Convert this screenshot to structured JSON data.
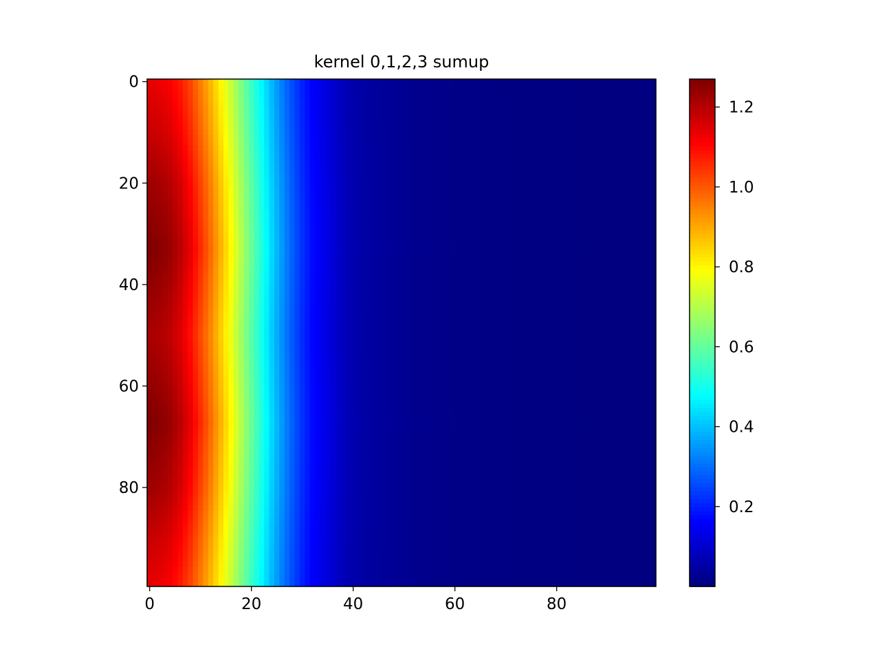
{
  "chart_data": {
    "type": "heatmap",
    "title": "kernel 0,1,2,3 sumup",
    "xlabel": "",
    "ylabel": "",
    "grid": false,
    "colormap": "jet",
    "shape": [
      100,
      100
    ],
    "xlim": [
      -0.5,
      99.5
    ],
    "ylim": [
      99.5,
      -0.5
    ],
    "x_ticks": [
      0,
      20,
      40,
      60,
      80
    ],
    "y_ticks": [
      0,
      20,
      40,
      60,
      80
    ],
    "x_tick_labels": [
      "0",
      "20",
      "40",
      "60",
      "80"
    ],
    "y_tick_labels": [
      "0",
      "20",
      "40",
      "60",
      "80"
    ],
    "colorbar": {
      "vmin": 0.0,
      "vmax": 1.27,
      "ticks": [
        0.2,
        0.4,
        0.6,
        0.8,
        1.0,
        1.2
      ],
      "tick_labels": [
        "0.2",
        "0.4",
        "0.6",
        "0.8",
        "1.0",
        "1.2"
      ],
      "placement": "right"
    },
    "column_profile": {
      "x": [
        0,
        2,
        4,
        6,
        8,
        10,
        12,
        14,
        16,
        18,
        20,
        22,
        24,
        26,
        28,
        30,
        32,
        34,
        36,
        38,
        40,
        44,
        48,
        52,
        56,
        60,
        70,
        80,
        90,
        99
      ],
      "values_at_row_0": [
        1.15,
        1.14,
        1.12,
        1.09,
        1.04,
        0.97,
        0.9,
        0.82,
        0.74,
        0.65,
        0.57,
        0.48,
        0.4,
        0.33,
        0.27,
        0.21,
        0.16,
        0.13,
        0.1,
        0.08,
        0.06,
        0.04,
        0.03,
        0.02,
        0.015,
        0.01,
        0.005,
        0.003,
        0.002,
        0.001
      ],
      "values_at_row_33": [
        1.27,
        1.26,
        1.24,
        1.2,
        1.14,
        1.06,
        0.98,
        0.89,
        0.8,
        0.7,
        0.61,
        0.52,
        0.43,
        0.35,
        0.28,
        0.22,
        0.17,
        0.14,
        0.11,
        0.08,
        0.06,
        0.04,
        0.03,
        0.02,
        0.015,
        0.01,
        0.005,
        0.003,
        0.002,
        0.001
      ]
    },
    "row_modulation": {
      "y": [
        0,
        10,
        20,
        33,
        45,
        50,
        55,
        67,
        80,
        90,
        99
      ],
      "factor": [
        0.9,
        0.93,
        0.97,
        1.0,
        0.97,
        0.96,
        0.97,
        1.0,
        0.97,
        0.93,
        0.9
      ]
    }
  }
}
